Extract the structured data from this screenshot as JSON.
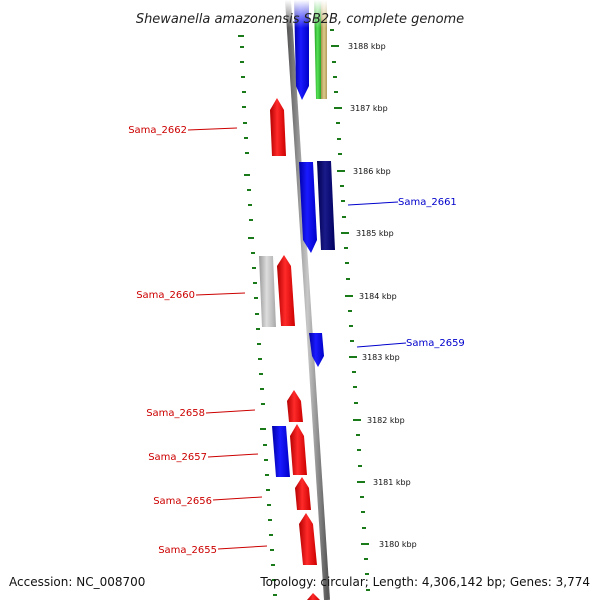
{
  "title": "Shewanella amazonensis SB2B, complete genome",
  "accession": "Accession: NC_008700",
  "summary": "Topology: circular; Length: 4,306,142 bp; Genes: 3,774",
  "colors": {
    "forward": "#ff0000",
    "reverse": "#0000ff",
    "navy": "#00006e",
    "grey": "#bbbbbb",
    "green": "#33cc33",
    "tan": "#c8b46e",
    "tick": "#1a7a1a",
    "backbone": "#7f7f7f"
  },
  "ruler": [
    "3188 kbp",
    "3187 kbp",
    "3186 kbp",
    "3185 kbp",
    "3184 kbp",
    "3183 kbp",
    "3182 kbp",
    "3181 kbp",
    "3180 kbp"
  ],
  "gene_labels": [
    {
      "text": "Sama_2662",
      "color": "#cc0000"
    },
    {
      "text": "Sama_2661",
      "color": "#0000cc"
    },
    {
      "text": "Sama_2660",
      "color": "#cc0000"
    },
    {
      "text": "Sama_2659",
      "color": "#0000cc"
    },
    {
      "text": "Sama_2658",
      "color": "#cc0000"
    },
    {
      "text": "Sama_2657",
      "color": "#cc0000"
    },
    {
      "text": "Sama_2656",
      "color": "#cc0000"
    },
    {
      "text": "Sama_2655",
      "color": "#cc0000"
    }
  ]
}
